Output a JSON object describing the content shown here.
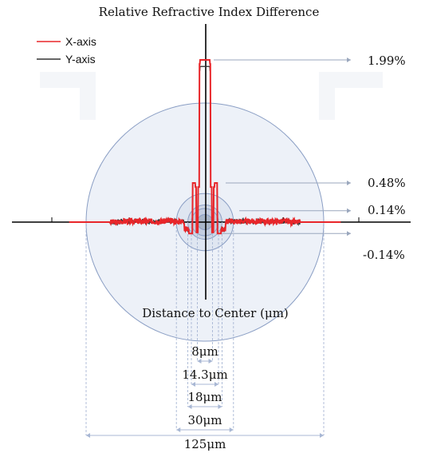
{
  "title": "Relative Refractive Index Difference",
  "x_axis_title": "Distance to Center (μm)",
  "legend": [
    {
      "label": "X-axis",
      "color": "#e8262a"
    },
    {
      "label": "Y-axis",
      "color": "#333333"
    }
  ],
  "index_levels": [
    {
      "label": "1.99%",
      "value": 1.99
    },
    {
      "label": "0.48%",
      "value": 0.48
    },
    {
      "label": "0.14%",
      "value": 0.14
    },
    {
      "label": "-0.14%",
      "value": -0.14
    }
  ],
  "diameters": [
    {
      "label": "8μm",
      "value": 8
    },
    {
      "label": "14.3μm",
      "value": 14.3
    },
    {
      "label": "18μm",
      "value": 18
    },
    {
      "label": "30μm",
      "value": 30
    },
    {
      "label": "125μm",
      "value": 125
    }
  ],
  "colors": {
    "cladding_fill": "#edf1f8",
    "cladding_stroke": "#8a9ec4",
    "core_fill": "#a9b6c9",
    "dimension_line": "#a8b7d4",
    "axis": "#000000"
  }
}
